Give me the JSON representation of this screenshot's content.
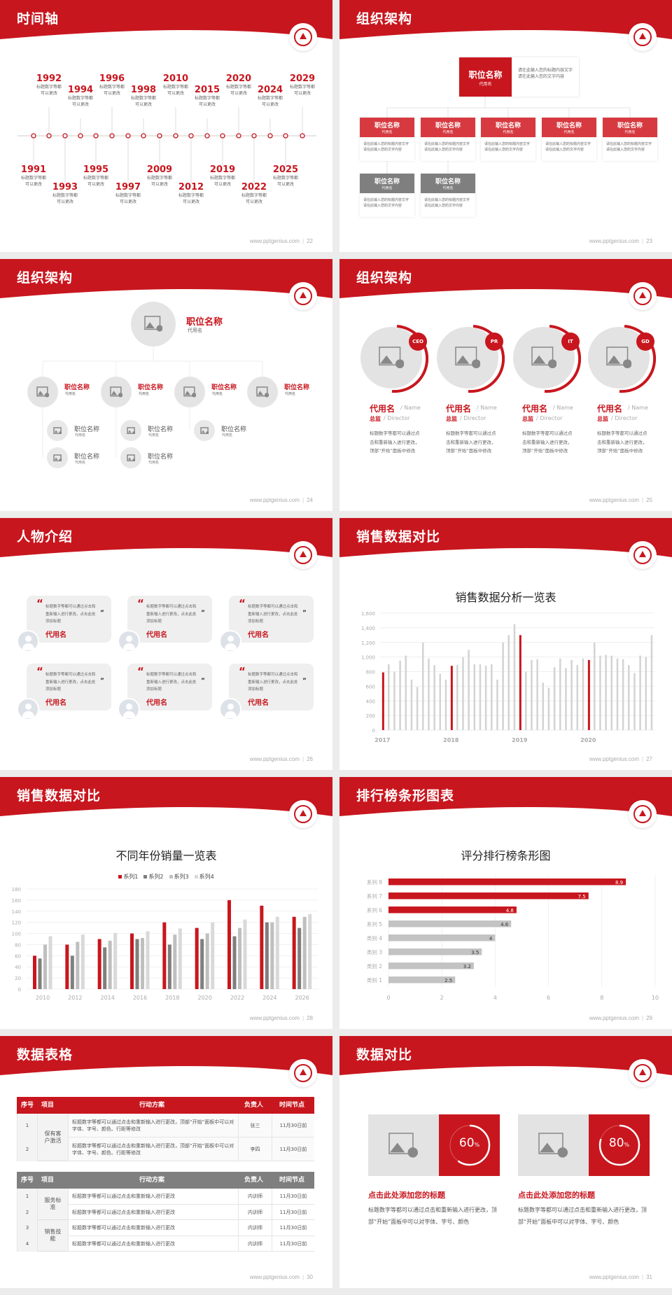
{
  "footer_url": "www.pptgenius.com",
  "colors": {
    "brand_red": "#c8161e",
    "gray": "#7f7f7f",
    "light_gray": "#d0d0d0"
  },
  "slides": [
    {
      "title": "时间轴",
      "page": "22"
    },
    {
      "title": "组织架构",
      "page": "23"
    },
    {
      "title": "组织架构",
      "page": "24"
    },
    {
      "title": "组织架构",
      "page": "25"
    },
    {
      "title": "人物介绍",
      "page": "26"
    },
    {
      "title": "销售数据对比",
      "page": "27"
    },
    {
      "title": "销售数据对比",
      "page": "28"
    },
    {
      "title": "排行榜条形图表",
      "page": "29"
    },
    {
      "title": "数据表格",
      "page": "30"
    },
    {
      "title": "数据对比",
      "page": "31"
    }
  ],
  "timeline": {
    "caption_line1": "标题数字等都",
    "caption_line2": "可以更改",
    "years": [
      "1991",
      "1992",
      "1993",
      "1994",
      "1995",
      "1996",
      "1997",
      "1998",
      "2009",
      "2010",
      "2012",
      "2015",
      "2019",
      "2020",
      "2022",
      "2024",
      "2025",
      "2029"
    ]
  },
  "org1": {
    "top": {
      "title": "职位名称",
      "sub": "代用名",
      "desc": "请在此输入您的标题内容文字请在此输入您的文字内容"
    },
    "children": [
      {
        "title": "职位名称",
        "sub": "代用名",
        "desc": "请在此输入您的标题内容文字请在此输入您的文字内容"
      },
      {
        "title": "职位名称",
        "sub": "代用名",
        "desc": "请在此输入您的标题内容文字请在此输入您的文字内容"
      },
      {
        "title": "职位名称",
        "sub": "代用名",
        "desc": "请在此输入您的标题内容文字请在此输入您的文字内容"
      },
      {
        "title": "职位名称",
        "sub": "代用名",
        "desc": "请在此输入您的标题内容文字请在此输入您的文字内容"
      },
      {
        "title": "职位名称",
        "sub": "代用名",
        "desc": "请在此输入您的标题内容文字请在此输入您的文字内容"
      }
    ],
    "grand": [
      {
        "title": "职位名称",
        "sub": "代用名",
        "desc": "请在此输入您的标题内容文字请在此输入您的文字内容"
      },
      {
        "title": "职位名称",
        "sub": "代用名",
        "desc": "请在此输入您的标题内容文字请在此输入您的文字内容"
      }
    ]
  },
  "org2": {
    "top": {
      "title": "职位名称",
      "sub": "代用名"
    },
    "mid": [
      {
        "title": "职位名称",
        "sub": "代用名"
      },
      {
        "title": "职位名称",
        "sub": "代用名"
      },
      {
        "title": "职位名称",
        "sub": "代用名"
      },
      {
        "title": "职位名称",
        "sub": "代用名"
      }
    ],
    "small": [
      {
        "title": "职位名称",
        "sub": "代用名"
      },
      {
        "title": "职位名称",
        "sub": "代用名"
      },
      {
        "title": "职位名称",
        "sub": "代用名"
      },
      {
        "title": "职位名称",
        "sub": "代用名"
      },
      {
        "title": "职位名称",
        "sub": "代用名"
      }
    ]
  },
  "org3": {
    "members": [
      {
        "badge": "CEO",
        "name": "代用名",
        "name_en": "/ Name",
        "role": "总监",
        "role_en": "/  Director",
        "desc": "标题数字等都可以通过点击和重新输入进行更改，顶部“开始”面板中修改"
      },
      {
        "badge": "PR",
        "name": "代用名",
        "name_en": "/ Name",
        "role": "总监",
        "role_en": "/  Director",
        "desc": "标题数字等都可以通过点击和重新输入进行更改，顶部“开始”面板中修改"
      },
      {
        "badge": "IT",
        "name": "代用名",
        "name_en": "/ Name",
        "role": "总监",
        "role_en": "/  Director",
        "desc": "标题数字等都可以通过点击和重新输入进行更改，顶部“开始”面板中修改"
      },
      {
        "badge": "GD",
        "name": "代用名",
        "name_en": "/ Name",
        "role": "总监",
        "role_en": "/  Director",
        "desc": "标题数字等都可以通过点击和重新输入进行更改，顶部“开始”面板中修改"
      }
    ]
  },
  "people": [
    {
      "quote": "标题数字等都可以通过点击和重新输入进行更改，点击此处添加标题",
      "name": "代用名"
    },
    {
      "quote": "标题数字等都可以通过点击和重新输入进行更改，点击此处添加标题",
      "name": "代用名"
    },
    {
      "quote": "标题数字等都可以通过点击和重新输入进行更改，点击此处添加标题",
      "name": "代用名"
    },
    {
      "quote": "标题数字等都可以通过点击和重新输入进行更改，点击此处添加标题",
      "name": "代用名"
    },
    {
      "quote": "标题数字等都可以通过点击和重新输入进行更改，点击此处添加标题",
      "name": "代用名"
    },
    {
      "quote": "标题数字等都可以通过点击和重新输入进行更改，点击此处添加标题",
      "name": "代用名"
    }
  ],
  "chart_data": [
    {
      "type": "bar",
      "title": "销售数据分析一览表",
      "ylim": [
        0,
        1600
      ],
      "yticks": [
        "0",
        "200",
        "400",
        "600",
        "800",
        "1,000",
        "1,200",
        "1,400",
        "1,600"
      ],
      "xtick_labels": [
        "2017",
        "2018",
        "2019",
        "2020"
      ],
      "xtick_positions": [
        0,
        12,
        24,
        36
      ],
      "highlighted_indices": [
        0,
        12,
        24,
        36
      ],
      "grid": true,
      "values": [
        790,
        900,
        800,
        950,
        1020,
        690,
        590,
        1200,
        980,
        890,
        770,
        690,
        880,
        890,
        1000,
        1100,
        900,
        900,
        880,
        900,
        690,
        1200,
        1300,
        1450,
        1300,
        800,
        960,
        970,
        650,
        580,
        860,
        980,
        850,
        960,
        890,
        980,
        960,
        1200,
        1020,
        1030,
        1020,
        980,
        970,
        890,
        780,
        1020,
        1000,
        1300
      ]
    },
    {
      "type": "bar",
      "title": "不同年份销量一览表",
      "legend": "top",
      "ylim": [
        0,
        180
      ],
      "yticks": [
        "0",
        "20",
        "40",
        "60",
        "80",
        "100",
        "120",
        "140",
        "160",
        "180"
      ],
      "categories": [
        "2010",
        "2012",
        "2014",
        "2016",
        "2018",
        "2020",
        "2022",
        "2024",
        "2026"
      ],
      "series": [
        {
          "name": "系列1",
          "color": "#c8161e",
          "values": [
            60,
            80,
            90,
            100,
            120,
            110,
            160,
            150,
            130
          ]
        },
        {
          "name": "系列2",
          "color": "#7f7f7f",
          "values": [
            55,
            60,
            75,
            90,
            80,
            90,
            95,
            120,
            110
          ]
        },
        {
          "name": "系列3",
          "color": "#bfbfbf",
          "values": [
            80,
            85,
            87,
            92,
            98,
            100,
            110,
            120,
            130
          ]
        },
        {
          "name": "系列4",
          "color": "#d9d9d9",
          "values": [
            95,
            98,
            101,
            104,
            109,
            120,
            125,
            130,
            135
          ]
        }
      ]
    },
    {
      "type": "bar",
      "orientation": "horizontal",
      "title": "评分排行榜条形图",
      "xlim": [
        0,
        10
      ],
      "xticks": [
        "0",
        "2",
        "4",
        "6",
        "8",
        "10"
      ],
      "categories": [
        "系列 8",
        "系列 7",
        "系列 6",
        "系列 5",
        "类别 4",
        "类别 3",
        "类别 2",
        "类别 1"
      ],
      "values": [
        8.9,
        7.5,
        4.8,
        4.6,
        4,
        3.5,
        3.2,
        2.5
      ],
      "labels": [
        "8.9",
        "7.5",
        "4.8",
        "4.6",
        "4",
        "3.5",
        "3.2",
        "2.5"
      ],
      "highlighted": [
        true,
        true,
        true,
        false,
        false,
        false,
        false,
        false
      ]
    }
  ],
  "tables": {
    "headers": [
      "序号",
      "项目",
      "行动方案",
      "负责人",
      "时间节点"
    ],
    "t1": {
      "groups": [
        {
          "project": "保有客户激活",
          "rows": [
            [
              "1",
              "标题数字等都可以通过点击和重新输入进行更改，顶部“开始”面板中可以对字体、字号、颜色、行距等修改",
              "张三",
              "11月30日前"
            ],
            [
              "2",
              "标题数字等都可以通过点击和重新输入进行更改，顶部“开始”面板中可以对字体、字号、颜色、行距等修改",
              "李四",
              "11月30日前"
            ]
          ]
        }
      ]
    },
    "t2": {
      "groups": [
        {
          "project": "服务标准",
          "rows": [
            [
              "1",
              "标题数字等都可以通过点击和重新输入进行更改",
              "内训师",
              "11月30日前"
            ],
            [
              "2",
              "标题数字等都可以通过点击和重新输入进行更改",
              "内训师",
              "11月30日前"
            ]
          ]
        },
        {
          "project": "销售技能",
          "rows": [
            [
              "3",
              "标题数字等都可以通过点击和重新输入进行更改",
              "内训师",
              "11月30日前"
            ],
            [
              "4",
              "标题数字等都可以通过点击和重新输入进行更改",
              "内训师",
              "11月30日前"
            ]
          ]
        }
      ]
    }
  },
  "compare": [
    {
      "percent": 60,
      "value": "60",
      "unit": "%",
      "title": "点击此处添加您的标题",
      "desc": "标题数字等都可以通过点击和重新输入进行更改，顶部“开始”面板中可以对字体、字号、颜色"
    },
    {
      "percent": 80,
      "value": "80",
      "unit": "%",
      "title": "点击此处添加您的标题",
      "desc": "标题数字等都可以通过点击和重新输入进行更改，顶部“开始”面板中可以对字体、字号、颜色"
    }
  ]
}
